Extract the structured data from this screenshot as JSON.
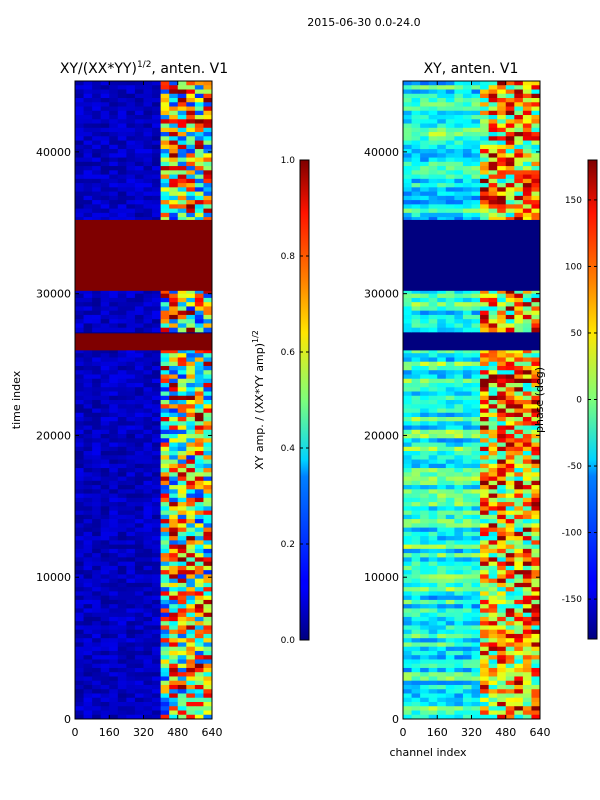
{
  "figure": {
    "suptitle": "2015-06-30 0.0-24.0"
  },
  "chart_data": [
    {
      "type": "heatmap",
      "title": "XY/(XX*YY)^1/2, anten. V1",
      "title_main": "XY/(XX*YY)",
      "title_sup": "1/2",
      "title_tail": ", anten. V1",
      "xlabel": "",
      "ylabel": "time index",
      "xlim": [
        0,
        640
      ],
      "ylim": [
        0,
        45000
      ],
      "x_ticks": [
        0,
        160,
        320,
        480,
        640
      ],
      "y_ticks": [
        0,
        10000,
        20000,
        30000,
        40000
      ],
      "colormap": "jet",
      "masked_bands_time_index": [
        [
          26000,
          27200
        ],
        [
          30200,
          35200
        ]
      ],
      "colorbar": {
        "label_main": "XY amp. / (XX*YY amp)",
        "label_sup": "1/2",
        "range": [
          0.0,
          1.0
        ],
        "ticks": [
          "0.0",
          "0.2",
          "0.4",
          "0.6",
          "0.8",
          "1.0"
        ]
      }
    },
    {
      "type": "heatmap",
      "title": "XY, anten. V1",
      "xlabel": "channel index",
      "ylabel": "",
      "xlim": [
        0,
        640
      ],
      "ylim": [
        0,
        45000
      ],
      "x_ticks": [
        0,
        160,
        320,
        480,
        640
      ],
      "y_ticks": [
        0,
        10000,
        20000,
        30000,
        40000
      ],
      "colormap": "jet",
      "masked_bands_time_index": [
        [
          26000,
          27200
        ],
        [
          30200,
          35200
        ]
      ],
      "colorbar": {
        "label": "phase (deg)",
        "range": [
          -180,
          180
        ],
        "ticks": [
          "-150",
          "-100",
          "-50",
          "0",
          "50",
          "100",
          "150"
        ]
      }
    }
  ]
}
